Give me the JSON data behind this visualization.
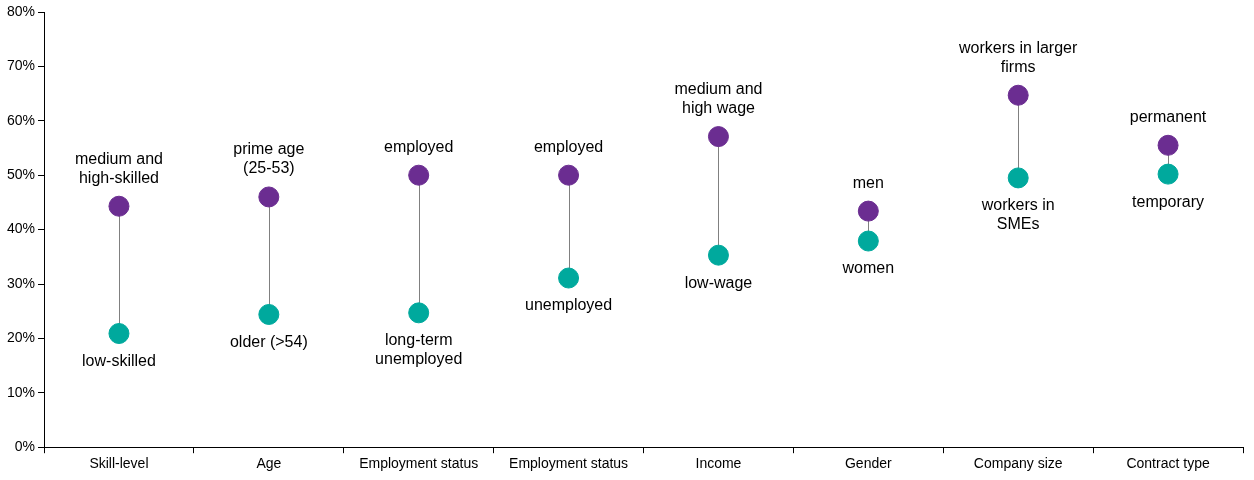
{
  "chart_data": {
    "type": "scatter",
    "categories": [
      "Skill-level",
      "Age",
      "Employment status",
      "Employment status",
      "Income",
      "Gender",
      "Company size",
      "Contract type"
    ],
    "series": [
      {
        "color": "#6b2d91",
        "values": [
          44.3,
          46.0,
          50.0,
          50.0,
          57.1,
          43.4,
          64.7,
          55.5
        ]
      },
      {
        "color": "#00a99d",
        "values": [
          20.9,
          24.4,
          24.7,
          31.1,
          35.3,
          37.9,
          49.5,
          50.2
        ]
      }
    ],
    "ylim": [
      0,
      80
    ],
    "yticks": [
      {
        "value": 0,
        "label": "0%"
      },
      {
        "value": 10,
        "label": "10%"
      },
      {
        "value": 20,
        "label": "20%"
      },
      {
        "value": 30,
        "label": "30%"
      },
      {
        "value": 40,
        "label": "40%"
      },
      {
        "value": 50,
        "label": "50%"
      },
      {
        "value": 60,
        "label": "60%"
      },
      {
        "value": 70,
        "label": "70%"
      },
      {
        "value": 80,
        "label": "80%"
      }
    ],
    "grid": false,
    "legend": false,
    "marker": "circle",
    "annotations": [
      {
        "text": "medium and\nhigh-skilled",
        "x": "Skill-level",
        "y": 44.3
      },
      {
        "text": "low-skilled",
        "x": "Skill-level",
        "y": 20.9
      },
      {
        "text": "prime age\n(25-53)",
        "x": "Age",
        "y": 46.0
      },
      {
        "text": "older (>54)",
        "x": "Age",
        "y": 24.4
      },
      {
        "text": "employed",
        "x": "Employment status",
        "y": 50.0
      },
      {
        "text": "long-term\nunemployed",
        "x": "Employment status",
        "y": 24.7
      },
      "employed",
      "unemployed",
      {
        "text": "medium and\nhigh wage",
        "x": "Income",
        "y": 57.1
      },
      {
        "text": "low-wage",
        "x": "Income",
        "y": 35.3
      },
      {
        "text": "men",
        "x": "Gender",
        "y": 43.4
      },
      {
        "text": "women",
        "x": "Gender",
        "y": 37.9
      },
      {
        "text": "workers in larger\nfirms",
        "x": "Company size",
        "y": 64.7
      },
      {
        "text": "workers in\nSMEs",
        "x": "Company size",
        "y": 49.5
      },
      {
        "text": "permanent",
        "x": "Contract type",
        "y": 55.5
      },
      {
        "text": "temporary",
        "x": "Contract type",
        "y": 50.2
      }
    ]
  }
}
